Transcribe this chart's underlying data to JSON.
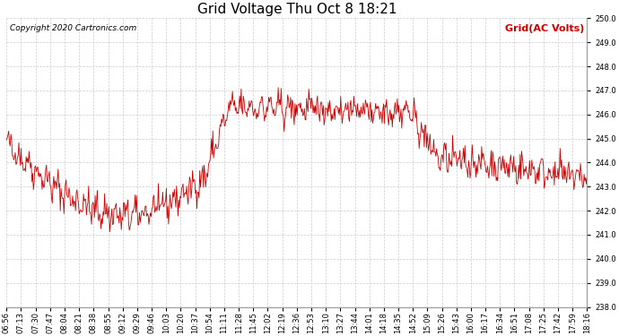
{
  "title": "Grid Voltage Thu Oct 8 18:21",
  "copyright_text": "Copyright 2020 Cartronics.com",
  "legend_text": "Grid(AC Volts)",
  "legend_color": "#cc0000",
  "line_color": "#cc0000",
  "background_color": "#ffffff",
  "grid_color": "#cccccc",
  "ylim": [
    238.0,
    250.0
  ],
  "yticks": [
    238.0,
    239.0,
    240.0,
    241.0,
    242.0,
    243.0,
    244.0,
    245.0,
    246.0,
    247.0,
    248.0,
    249.0,
    250.0
  ],
  "xtick_labels": [
    "06:56",
    "07:13",
    "07:30",
    "07:47",
    "08:04",
    "08:21",
    "08:38",
    "08:55",
    "09:12",
    "09:29",
    "09:46",
    "10:03",
    "10:20",
    "10:37",
    "10:54",
    "11:11",
    "11:28",
    "11:45",
    "12:02",
    "12:19",
    "12:36",
    "12:53",
    "13:10",
    "13:27",
    "13:44",
    "14:01",
    "14:18",
    "14:35",
    "14:52",
    "15:09",
    "15:26",
    "15:43",
    "16:00",
    "16:17",
    "16:34",
    "16:51",
    "17:08",
    "17:25",
    "17:42",
    "17:59",
    "18:16"
  ],
  "title_fontsize": 11,
  "tick_fontsize": 6,
  "copyright_fontsize": 6.5,
  "legend_fontsize": 8
}
